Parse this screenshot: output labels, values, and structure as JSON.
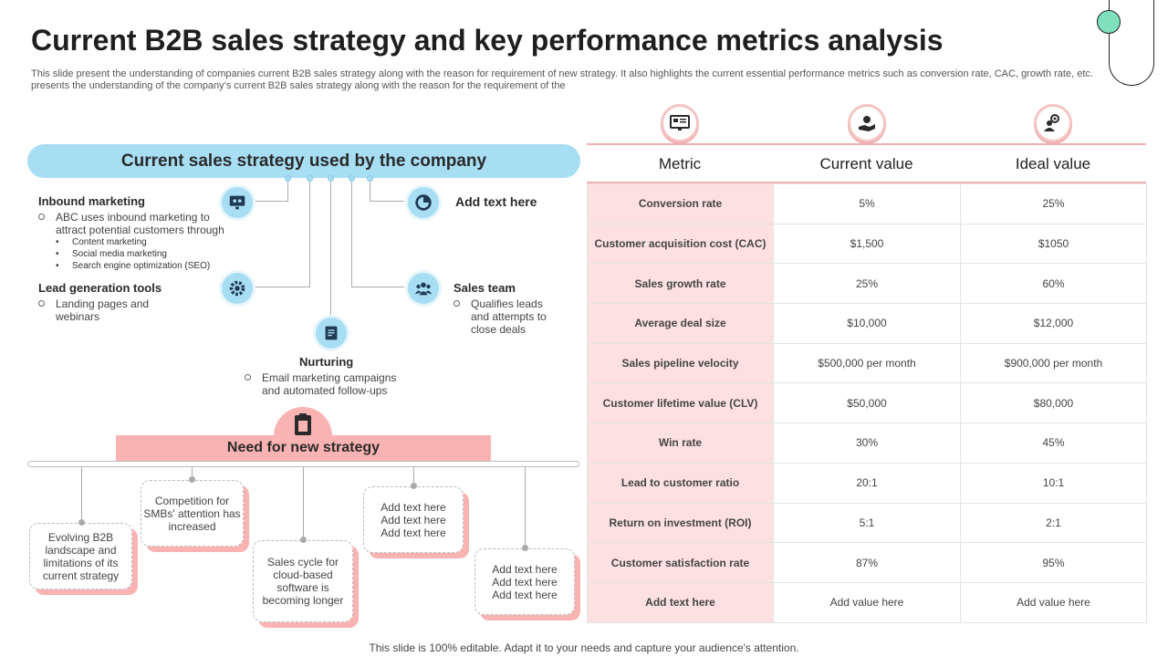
{
  "header": {
    "title": "Current B2B sales strategy and key performance metrics analysis",
    "subtitle": "This slide present the understanding of companies current B2B sales strategy along with the reason for requirement of new strategy. It also highlights the current essential performance metrics such as conversion rate, CAC, growth rate, etc. presents the understanding of the company’s current B2B sales strategy along with the reason for the requirement of the"
  },
  "strategy": {
    "banner": "Current sales strategy used by the company",
    "inbound": {
      "title": "Inbound marketing",
      "text": "ABC uses inbound marketing to attract potential customers through",
      "items": [
        "Content marketing",
        "Social media marketing",
        "Search engine optimization (SEO)"
      ]
    },
    "lead_gen": {
      "title": "Lead generation tools",
      "text": "Landing pages and webinars"
    },
    "nurturing": {
      "title": "Nurturing",
      "text": "Email marketing campaigns and automated follow-ups"
    },
    "add_text": {
      "title": "Add text here"
    },
    "sales_team": {
      "title": "Sales team",
      "text": "Qualifies leads and attempts to close deals"
    }
  },
  "need": {
    "banner": "Need for new strategy",
    "cards": [
      "Evolving B2B landscape and limitations of its current strategy",
      "Competition for SMBs' attention has increased",
      "Sales cycle for cloud-based software is becoming longer",
      "Add text here Add text here Add text here",
      "Add text here Add text here Add text here"
    ]
  },
  "table": {
    "headers": [
      "Metric",
      "Current value",
      "Ideal value"
    ],
    "rows": [
      [
        "Conversion rate",
        "5%",
        "25%"
      ],
      [
        "Customer acquisition cost (CAC)",
        "$1,500",
        "$1050"
      ],
      [
        "Sales growth rate",
        "25%",
        "60%"
      ],
      [
        "Average deal size",
        "$10,000",
        "$12,000"
      ],
      [
        "Sales pipeline velocity",
        "$500,000 per month",
        "$900,000 per month"
      ],
      [
        "Customer lifetime value (CLV)",
        "$50,000",
        "$80,000"
      ],
      [
        "Win rate",
        "30%",
        "45%"
      ],
      [
        "Lead to customer ratio",
        "20:1",
        "10:1"
      ],
      [
        "Return on investment (ROI)",
        "5:1",
        "2:1"
      ],
      [
        "Customer satisfaction rate",
        "87%",
        "95%"
      ],
      [
        "Add text here",
        "Add value here",
        "Add value here"
      ]
    ]
  },
  "footer": "This slide is 100% editable. Adapt it to your needs and capture your audience's attention.",
  "colors": {
    "blue": "#a8def4",
    "pink": "#f9b3b3",
    "metric_bg": "#fde1e1"
  }
}
